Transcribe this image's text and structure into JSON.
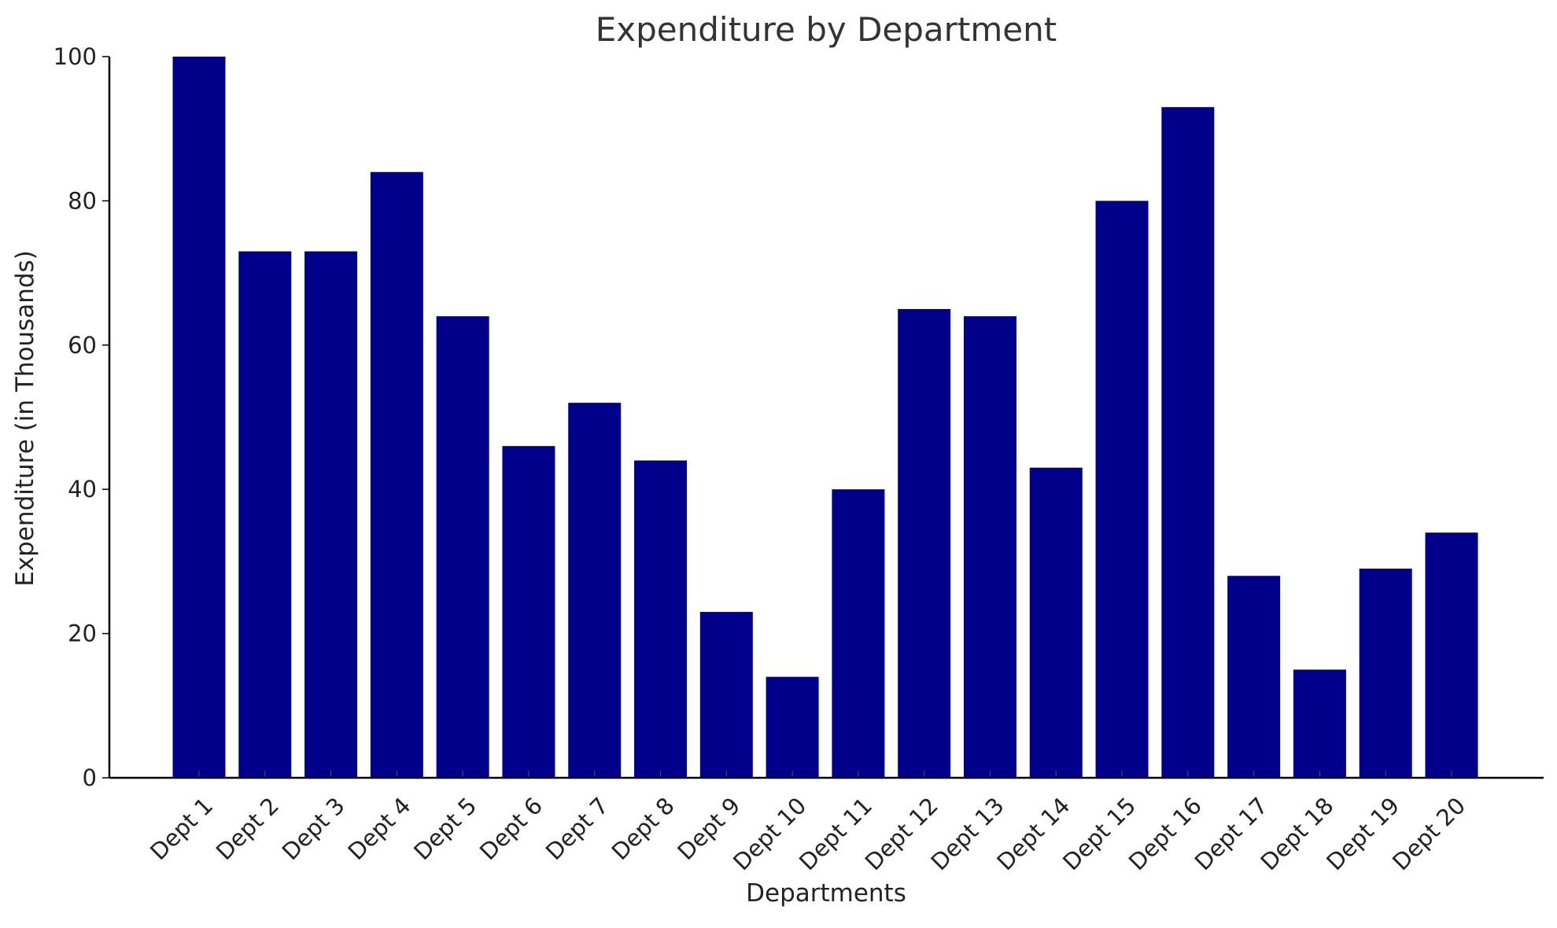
{
  "chart_data": {
    "type": "bar",
    "title": "Expenditure by Department",
    "xlabel": "Departments",
    "ylabel": "Expenditure (in Thousands)",
    "ylim": [
      0,
      100
    ],
    "yticks": [
      0,
      20,
      40,
      60,
      80,
      100
    ],
    "grid": false,
    "categories": [
      "Dept 1",
      "Dept 2",
      "Dept 3",
      "Dept 4",
      "Dept 5",
      "Dept 6",
      "Dept 7",
      "Dept 8",
      "Dept 9",
      "Dept 10",
      "Dept 11",
      "Dept 12",
      "Dept 13",
      "Dept 14",
      "Dept 15",
      "Dept 16",
      "Dept 17",
      "Dept 18",
      "Dept 19",
      "Dept 20"
    ],
    "values": [
      100,
      73,
      73,
      84,
      64,
      46,
      52,
      44,
      23,
      14,
      40,
      65,
      64,
      43,
      80,
      93,
      28,
      15,
      29,
      34
    ],
    "bar_color": "#00008b"
  }
}
